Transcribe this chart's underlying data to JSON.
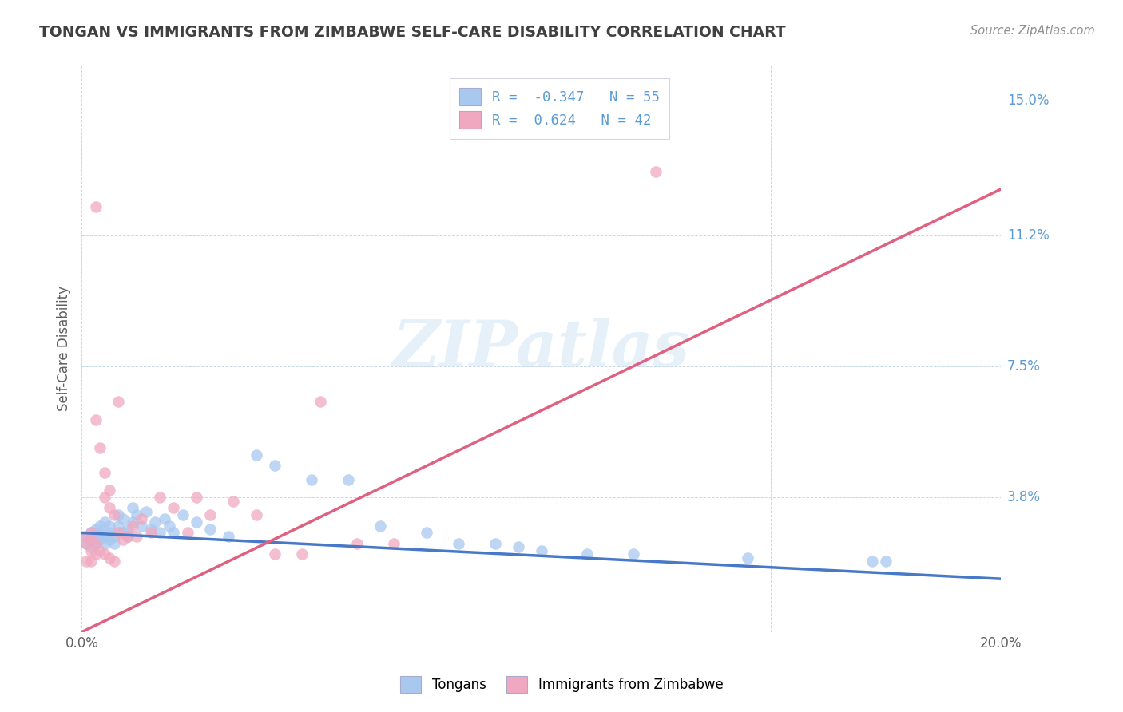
{
  "title": "TONGAN VS IMMIGRANTS FROM ZIMBABWE SELF-CARE DISABILITY CORRELATION CHART",
  "source": "Source: ZipAtlas.com",
  "ylabel": "Self-Care Disability",
  "xlim": [
    0.0,
    0.2
  ],
  "ylim": [
    0.0,
    0.16
  ],
  "ytick_positions": [
    0.038,
    0.075,
    0.112,
    0.15
  ],
  "ytick_labels": [
    "3.8%",
    "7.5%",
    "11.2%",
    "15.0%"
  ],
  "blue_R": -0.347,
  "blue_N": 55,
  "pink_R": 0.624,
  "pink_N": 42,
  "legend_label_blue": "Tongans",
  "legend_label_pink": "Immigrants from Zimbabwe",
  "blue_color": "#A8C8F0",
  "pink_color": "#F0A8C0",
  "blue_line_color": "#4878C8",
  "pink_line_color": "#E06080",
  "blue_line_x0": 0.0,
  "blue_line_y0": 0.028,
  "blue_line_x1": 0.2,
  "blue_line_y1": 0.015,
  "pink_line_x0": 0.0,
  "pink_line_y0": 0.0,
  "pink_line_x1": 0.2,
  "pink_line_y1": 0.125,
  "blue_scatter": [
    [
      0.001,
      0.025
    ],
    [
      0.001,
      0.027
    ],
    [
      0.002,
      0.026
    ],
    [
      0.002,
      0.028
    ],
    [
      0.002,
      0.024
    ],
    [
      0.003,
      0.027
    ],
    [
      0.003,
      0.025
    ],
    [
      0.003,
      0.029
    ],
    [
      0.004,
      0.026
    ],
    [
      0.004,
      0.028
    ],
    [
      0.004,
      0.03
    ],
    [
      0.005,
      0.027
    ],
    [
      0.005,
      0.025
    ],
    [
      0.005,
      0.031
    ],
    [
      0.006,
      0.026
    ],
    [
      0.006,
      0.028
    ],
    [
      0.006,
      0.03
    ],
    [
      0.007,
      0.027
    ],
    [
      0.007,
      0.025
    ],
    [
      0.008,
      0.033
    ],
    [
      0.008,
      0.03
    ],
    [
      0.009,
      0.028
    ],
    [
      0.009,
      0.032
    ],
    [
      0.01,
      0.029
    ],
    [
      0.01,
      0.027
    ],
    [
      0.011,
      0.035
    ],
    [
      0.011,
      0.031
    ],
    [
      0.012,
      0.033
    ],
    [
      0.013,
      0.03
    ],
    [
      0.014,
      0.034
    ],
    [
      0.015,
      0.029
    ],
    [
      0.016,
      0.031
    ],
    [
      0.017,
      0.028
    ],
    [
      0.018,
      0.032
    ],
    [
      0.019,
      0.03
    ],
    [
      0.02,
      0.028
    ],
    [
      0.022,
      0.033
    ],
    [
      0.025,
      0.031
    ],
    [
      0.028,
      0.029
    ],
    [
      0.032,
      0.027
    ],
    [
      0.038,
      0.05
    ],
    [
      0.042,
      0.047
    ],
    [
      0.05,
      0.043
    ],
    [
      0.058,
      0.043
    ],
    [
      0.065,
      0.03
    ],
    [
      0.075,
      0.028
    ],
    [
      0.082,
      0.025
    ],
    [
      0.09,
      0.025
    ],
    [
      0.095,
      0.024
    ],
    [
      0.1,
      0.023
    ],
    [
      0.11,
      0.022
    ],
    [
      0.12,
      0.022
    ],
    [
      0.145,
      0.021
    ],
    [
      0.172,
      0.02
    ],
    [
      0.175,
      0.02
    ]
  ],
  "pink_scatter": [
    [
      0.001,
      0.025
    ],
    [
      0.001,
      0.027
    ],
    [
      0.002,
      0.026
    ],
    [
      0.002,
      0.023
    ],
    [
      0.002,
      0.028
    ],
    [
      0.003,
      0.06
    ],
    [
      0.003,
      0.025
    ],
    [
      0.003,
      0.022
    ],
    [
      0.004,
      0.052
    ],
    [
      0.004,
      0.023
    ],
    [
      0.005,
      0.045
    ],
    [
      0.005,
      0.038
    ],
    [
      0.005,
      0.022
    ],
    [
      0.006,
      0.04
    ],
    [
      0.006,
      0.035
    ],
    [
      0.006,
      0.021
    ],
    [
      0.007,
      0.033
    ],
    [
      0.007,
      0.02
    ],
    [
      0.008,
      0.028
    ],
    [
      0.008,
      0.065
    ],
    [
      0.009,
      0.026
    ],
    [
      0.01,
      0.027
    ],
    [
      0.011,
      0.03
    ],
    [
      0.012,
      0.027
    ],
    [
      0.013,
      0.032
    ],
    [
      0.015,
      0.028
    ],
    [
      0.017,
      0.038
    ],
    [
      0.02,
      0.035
    ],
    [
      0.023,
      0.028
    ],
    [
      0.025,
      0.038
    ],
    [
      0.028,
      0.033
    ],
    [
      0.033,
      0.037
    ],
    [
      0.038,
      0.033
    ],
    [
      0.042,
      0.022
    ],
    [
      0.048,
      0.022
    ],
    [
      0.052,
      0.065
    ],
    [
      0.06,
      0.025
    ],
    [
      0.068,
      0.025
    ],
    [
      0.003,
      0.12
    ],
    [
      0.125,
      0.13
    ],
    [
      0.001,
      0.02
    ],
    [
      0.002,
      0.02
    ]
  ],
  "watermark": "ZIPatlas",
  "background_color": "#FFFFFF",
  "grid_color": "#C8D8E8",
  "title_color": "#404040",
  "axis_label_color": "#606060",
  "tick_color_right": "#5B9BD5",
  "tick_color_bottom": "#606060",
  "legend_text_color": "#5B9BD5",
  "source_color": "#909090"
}
